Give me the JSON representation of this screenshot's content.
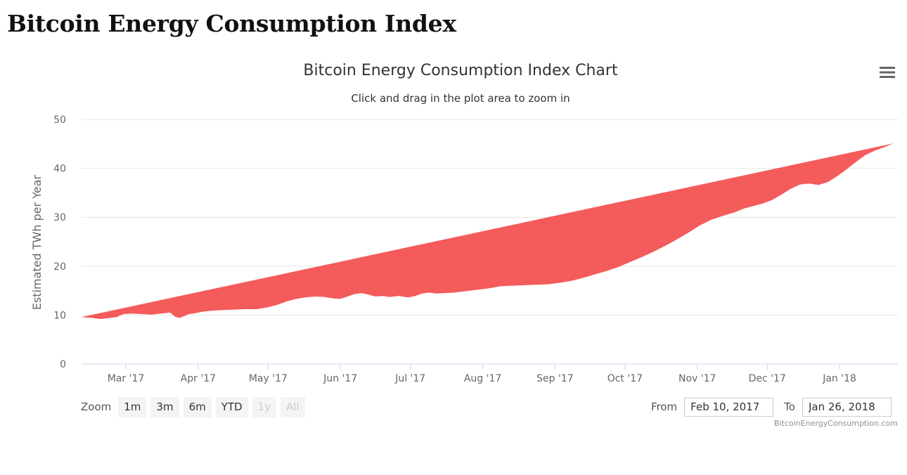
{
  "page": {
    "title": "Bitcoin Energy Consumption Index"
  },
  "colors": {
    "area": "#f45b5b",
    "grid": "#e6e6e6",
    "axis": "#ccd6eb",
    "text": "#333333"
  },
  "menu": {
    "icon": "hamburger-menu-icon"
  },
  "zoom": {
    "label": "Zoom",
    "buttons": [
      {
        "label": "1m",
        "enabled": true
      },
      {
        "label": "3m",
        "enabled": true
      },
      {
        "label": "6m",
        "enabled": true
      },
      {
        "label": "YTD",
        "enabled": true
      },
      {
        "label": "1y",
        "enabled": false
      },
      {
        "label": "All",
        "enabled": false
      }
    ]
  },
  "range": {
    "from_label": "From",
    "from_value": "Feb 10, 2017",
    "to_label": "To",
    "to_value": "Jan 26, 2018"
  },
  "credits": "BitcoinEnergyConsumption.com",
  "chart_data": {
    "type": "area",
    "title": "Bitcoin Energy Consumption Index Chart",
    "subtitle": "Click and drag in the plot area to zoom in",
    "ylabel": "Estimated TWh per Year",
    "xlabel": "",
    "ylim": [
      0,
      50
    ],
    "yticks": [
      0,
      10,
      20,
      30,
      40,
      50
    ],
    "xlim": [
      0,
      350
    ],
    "x_unit": "days since Feb 10, 2017",
    "xticks": [
      {
        "label": "Mar '17",
        "x": 19
      },
      {
        "label": "Apr '17",
        "x": 50
      },
      {
        "label": "May '17",
        "x": 80
      },
      {
        "label": "Jun '17",
        "x": 111
      },
      {
        "label": "Jul '17",
        "x": 141
      },
      {
        "label": "Aug '17",
        "x": 172
      },
      {
        "label": "Sep '17",
        "x": 203
      },
      {
        "label": "Oct '17",
        "x": 233
      },
      {
        "label": "Nov '17",
        "x": 264
      },
      {
        "label": "Dec '17",
        "x": 294
      },
      {
        "label": "Jan '18",
        "x": 325
      }
    ],
    "grid": true,
    "legend": false,
    "series": [
      {
        "name": "Estimated TWh per Year",
        "x": [
          0,
          5,
          8,
          12,
          15,
          18,
          22,
          26,
          30,
          34,
          38,
          40,
          42,
          44,
          46,
          48,
          52,
          56,
          60,
          65,
          70,
          75,
          80,
          84,
          88,
          92,
          96,
          100,
          104,
          108,
          111,
          114,
          117,
          120,
          123,
          126,
          129,
          132,
          136,
          140,
          143,
          146,
          149,
          152,
          156,
          160,
          165,
          170,
          175,
          180,
          185,
          190,
          195,
          200,
          205,
          210,
          215,
          220,
          225,
          230,
          235,
          240,
          245,
          250,
          255,
          260,
          265,
          270,
          275,
          280,
          284,
          288,
          292,
          296,
          300,
          304,
          308,
          312,
          316,
          320,
          324,
          328,
          332,
          336,
          340,
          344,
          348,
          350
        ],
        "y": [
          9.6,
          9.4,
          9.2,
          9.4,
          9.6,
          10.2,
          10.3,
          10.2,
          10.1,
          10.3,
          10.5,
          9.7,
          9.4,
          9.8,
          10.2,
          10.3,
          10.7,
          10.9,
          11.0,
          11.1,
          11.2,
          11.2,
          11.6,
          12.1,
          12.8,
          13.3,
          13.6,
          13.8,
          13.7,
          13.4,
          13.3,
          13.8,
          14.3,
          14.5,
          14.2,
          13.8,
          13.9,
          13.7,
          13.9,
          13.6,
          13.9,
          14.4,
          14.6,
          14.4,
          14.5,
          14.6,
          14.9,
          15.2,
          15.5,
          15.9,
          16.0,
          16.1,
          16.2,
          16.3,
          16.6,
          17.0,
          17.6,
          18.3,
          19.0,
          19.8,
          20.8,
          21.8,
          22.9,
          24.1,
          25.4,
          26.8,
          28.3,
          29.5,
          30.3,
          31.0,
          31.8,
          32.3,
          32.8,
          33.5,
          34.6,
          35.8,
          36.7,
          36.9,
          36.6,
          37.2,
          38.4,
          39.8,
          41.3,
          42.7,
          43.6,
          44.3,
          45.1,
          45.3
        ]
      }
    ]
  }
}
